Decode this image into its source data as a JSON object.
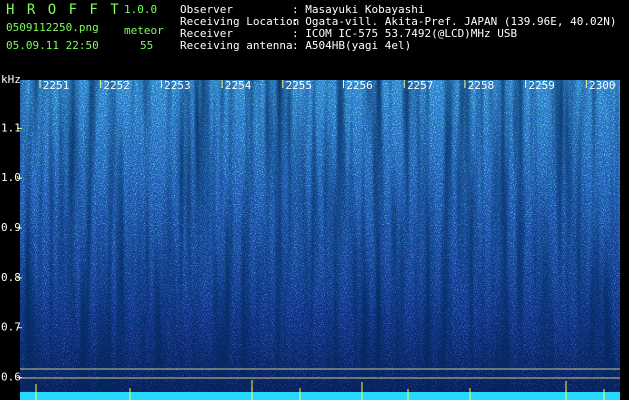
{
  "header": {
    "app_name": "H R O F F T",
    "version": "1.0.0",
    "file_name": "0509112250.png",
    "mode": "meteor",
    "date_time": "05.09.11 22:50",
    "count": "55",
    "info": [
      {
        "label": "Observer",
        "value": ": Masayuki Kobayashi"
      },
      {
        "label": "Receiving Location",
        "value": ": Ogata-vill. Akita-Pref. JAPAN (139.96E, 40.02N)"
      },
      {
        "label": "Receiver",
        "value": ": ICOM IC-575 53.7492(@LCD)MHz USB"
      },
      {
        "label": "Receiving antenna",
        "value": ": A504HB(yagi 4el)"
      }
    ]
  },
  "chart_data": {
    "type": "spectrogram",
    "y_label": "kHz",
    "x_labels": [
      "2251",
      "2252",
      "2253",
      "2254",
      "2255",
      "2256",
      "2257",
      "2258",
      "2259",
      "2300"
    ],
    "ylim": [
      0.555,
      1.197
    ],
    "yticks": [
      1.1,
      {
        "value": 1.0,
        "label": "1.0"
      },
      0.9,
      0.8,
      0.7,
      0.6
    ]
  }
}
